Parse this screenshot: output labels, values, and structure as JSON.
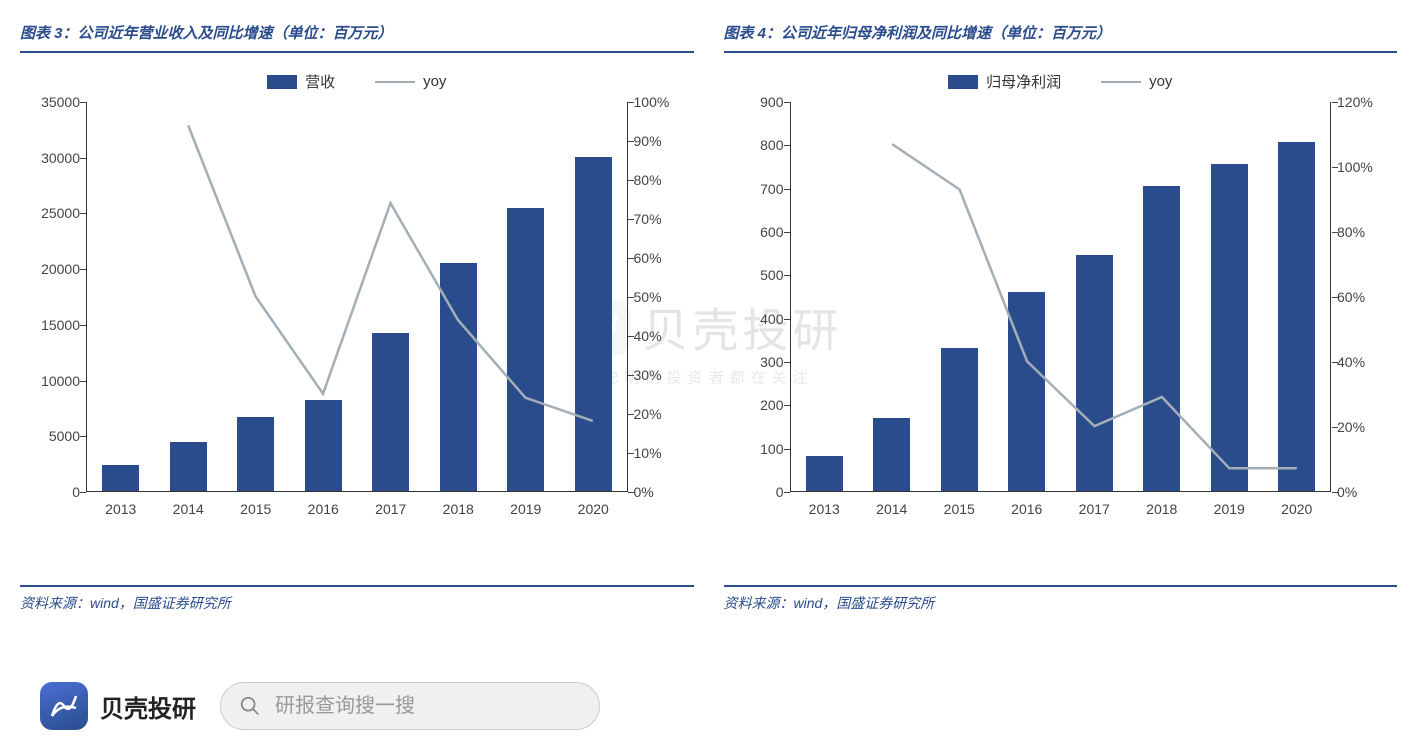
{
  "watermark": {
    "main": "贝壳投研",
    "sub": "聪明的投资者都在关注"
  },
  "brand": {
    "name": "贝壳投研"
  },
  "search": {
    "placeholder": "研报查询搜一搜"
  },
  "chart_left": {
    "title": "图表 3：公司近年营业收入及同比增速（单位：百万元）",
    "type": "bar+line",
    "legend_bar": "营收",
    "legend_line": "yoy",
    "categories": [
      "2013",
      "2014",
      "2015",
      "2016",
      "2017",
      "2018",
      "2019",
      "2020"
    ],
    "bar_values": [
      2300,
      4400,
      6600,
      8200,
      14200,
      20500,
      25400,
      30000
    ],
    "line_values_pct": [
      null,
      94,
      50,
      25,
      74,
      44,
      24,
      18
    ],
    "y_left": {
      "min": 0,
      "max": 35000,
      "step": 5000
    },
    "y_right": {
      "min": 0,
      "max": 100,
      "step": 10,
      "suffix": "%"
    },
    "bar_color": "#2a4c8c",
    "line_color": "#a3aeb7",
    "source": "资料来源：wind，国盛证券研究所"
  },
  "chart_right": {
    "title": "图表 4：公司近年归母净利润及同比增速（单位：百万元）",
    "type": "bar+line",
    "legend_bar": "归母净利润",
    "legend_line": "yoy",
    "categories": [
      "2013",
      "2014",
      "2015",
      "2016",
      "2017",
      "2018",
      "2019",
      "2020"
    ],
    "bar_values": [
      80,
      168,
      330,
      460,
      545,
      705,
      755,
      805
    ],
    "line_values_pct": [
      null,
      107,
      93,
      40,
      20,
      29,
      7,
      7
    ],
    "y_left": {
      "min": 0,
      "max": 900,
      "step": 100
    },
    "y_right": {
      "min": 0,
      "max": 120,
      "step": 20,
      "suffix": "%"
    },
    "bar_color": "#2a4c8c",
    "line_color": "#a3aeb7",
    "source": "资料来源：wind，国盛证券研究所"
  }
}
